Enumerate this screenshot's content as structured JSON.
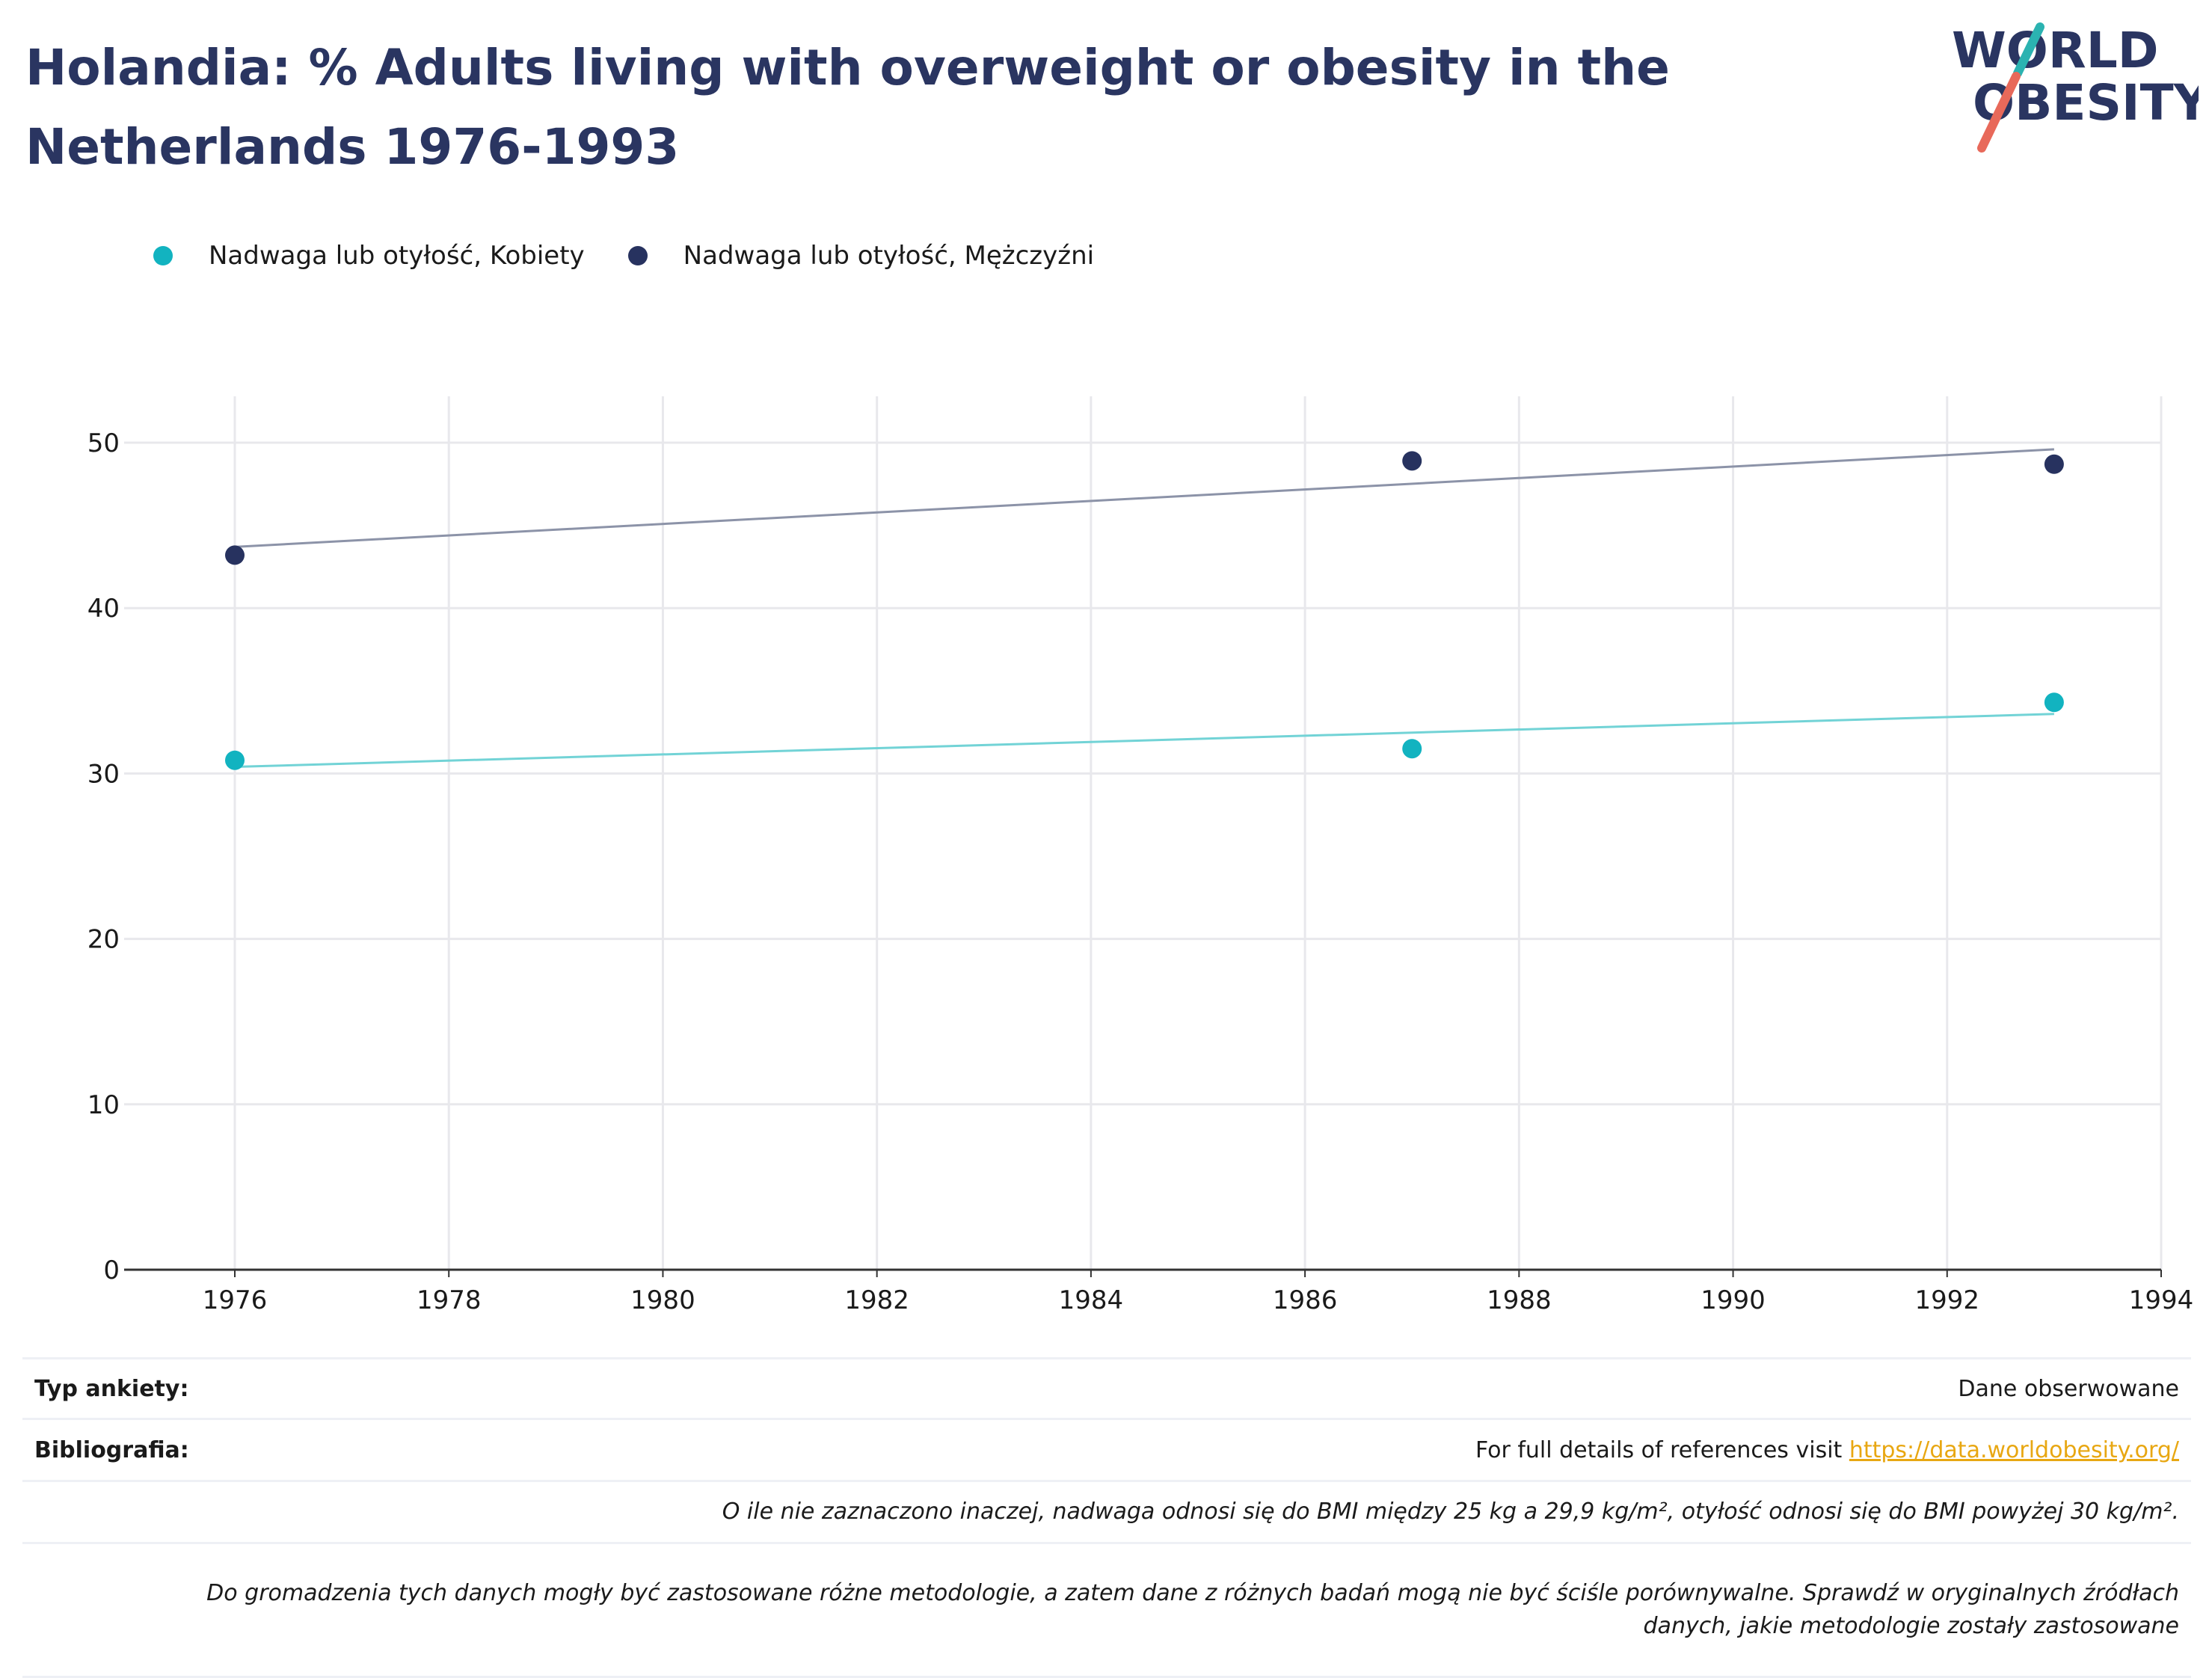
{
  "title": "Holandia: % Adults living with overweight or obesity in the Netherlands 1976-1993",
  "logo": {
    "line1": "WORLD",
    "line2": "OBESITY",
    "accent_top": "#2bb3b1",
    "accent_bottom": "#e8695a",
    "text_color": "#2a3561"
  },
  "colors": {
    "women": "#12b3c0",
    "men": "#27325f",
    "women_trend": "#72d3d6",
    "men_trend": "#8c93a8",
    "grid": "#e8e8ec",
    "axis": "#333333"
  },
  "legend": [
    {
      "label": "Nadwaga lub otyłość, Kobiety",
      "color": "#12b3c0"
    },
    {
      "label": "Nadwaga lub otyłość, Mężczyźni",
      "color": "#27325f"
    }
  ],
  "chart_data": {
    "type": "scatter",
    "title": "Holandia: % Adults living with overweight or obesity in the Netherlands 1976-1993",
    "xlabel": "",
    "ylabel": "",
    "xlim": [
      1975,
      1994
    ],
    "ylim": [
      0,
      52
    ],
    "x_ticks": [
      1976,
      1978,
      1980,
      1982,
      1984,
      1986,
      1988,
      1990,
      1992,
      1994
    ],
    "y_ticks": [
      0,
      10,
      20,
      30,
      40,
      50
    ],
    "grid": true,
    "legend_position": "top-left",
    "series": [
      {
        "name": "Nadwaga lub otyłość, Kobiety",
        "x": [
          1976,
          1987,
          1993
        ],
        "values": [
          30.8,
          31.5,
          34.3
        ],
        "trend": [
          [
            1976,
            30.4
          ],
          [
            1993,
            33.6
          ]
        ]
      },
      {
        "name": "Nadwaga lub otyłość, Mężczyźni",
        "x": [
          1976,
          1987,
          1993
        ],
        "values": [
          43.2,
          48.9,
          48.7
        ],
        "trend": [
          [
            1976,
            43.7
          ],
          [
            1993,
            49.6
          ]
        ]
      }
    ]
  },
  "info": {
    "survey_label": "Typ ankiety:",
    "survey_value": "Dane obserwowane",
    "biblio_label": "Bibliografia:",
    "biblio_text": "For full details of references visit ",
    "biblio_link": "https://data.worldobesity.org/",
    "note1": "O ile nie zaznaczono inaczej, nadwaga odnosi się do BMI między 25 kg a 29,9 kg/m², otyłość odnosi się do BMI powyżej 30 kg/m².",
    "note2": "Do gromadzenia tych danych mogły być zastosowane różne metodologie, a zatem dane z różnych badań mogą nie być ściśle porównywalne. Sprawdź w oryginalnych źródłach danych, jakie metodologie zostały zastosowane"
  }
}
